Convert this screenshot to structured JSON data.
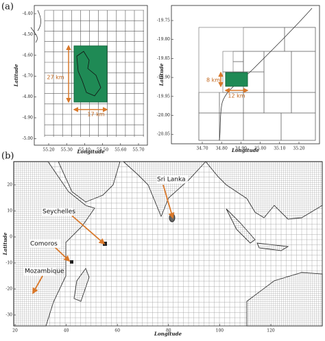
{
  "panel_a": {
    "label": "(a)",
    "left": {
      "y_axis_title": "Latitude",
      "x_axis_title": "Longitude",
      "yticks": [
        "-4.40",
        "-4.50",
        "-4.60",
        "-4.70",
        "-4.80",
        "-4.90",
        "-5.00"
      ],
      "xticks": [
        "55.20",
        "55.30",
        "55.40",
        "55.50",
        "55.60",
        "55.70"
      ],
      "height_label": "27 km",
      "width_label": "17 km"
    },
    "right": {
      "y_axis_title": "Latitude",
      "x_axis_title": "Longitude",
      "yticks": [
        "-19.75",
        "-19.80",
        "-19.85",
        "-19.90",
        "-19.95",
        "-20.00",
        "-20.05"
      ],
      "xticks": [
        "34.70",
        "34.80",
        "34.90",
        "35.00",
        "35.10",
        "35.20"
      ],
      "height_label": "8 km",
      "width_label": "12 km"
    }
  },
  "panel_b": {
    "label": "(b)",
    "y_axis_title": "Latitude",
    "x_axis_title": "Longitude",
    "yticks": [
      "20",
      "10",
      "0",
      "-10",
      "-20",
      "-30"
    ],
    "xticks": [
      "20",
      "40",
      "60",
      "80",
      "100",
      "120"
    ],
    "places": [
      "Sri Lanka",
      "Seychelles",
      "Comoros",
      "Mozambique"
    ]
  }
}
